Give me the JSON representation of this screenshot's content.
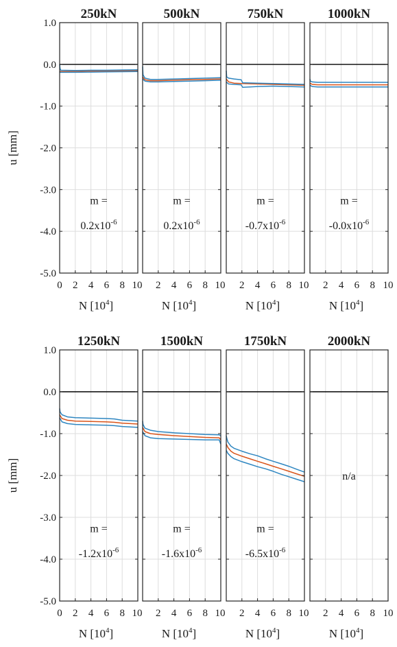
{
  "chart_data": {
    "type": "line",
    "layout": "2x4 small multiples",
    "ylabel": "u [mm]",
    "xlabel": "N [10",
    "xlabel_sup": "4",
    "xlabel_end": "]",
    "ylim": [
      -5.0,
      1.0
    ],
    "yticks": [
      "1.0",
      "0.0",
      "-1.0",
      "-2.0",
      "-3.0",
      "-4.0",
      "-5.0"
    ],
    "xlim": [
      0,
      10
    ],
    "xticks_first": [
      "0",
      "2",
      "4",
      "6",
      "8",
      "10"
    ],
    "xticks_other": [
      "2",
      "4",
      "6",
      "8",
      "10"
    ],
    "grid": true,
    "zero_line": 0,
    "colors": {
      "mean": "#d9541a",
      "envelope": "#2e86c1",
      "zero": "#000000",
      "grid": "#dddddd"
    },
    "m_label": "m =",
    "exp_label": "x10",
    "exp_sup": "-6",
    "panels": [
      {
        "title": "250kN",
        "m_value": "0.2",
        "series": [
          {
            "role": "mean",
            "x": [
              0,
              2,
              4,
              6,
              8,
              10
            ],
            "y": [
              -0.17,
              -0.165,
              -0.16,
              -0.16,
              -0.155,
              -0.15
            ]
          },
          {
            "role": "upper",
            "x": [
              0,
              0.05,
              0.15,
              2,
              4,
              6,
              8,
              10
            ],
            "y": [
              0.0,
              -0.1,
              -0.14,
              -0.145,
              -0.14,
              -0.14,
              -0.135,
              -0.13
            ]
          },
          {
            "role": "lower",
            "x": [
              0,
              2,
              4,
              6,
              8,
              10
            ],
            "y": [
              -0.19,
              -0.19,
              -0.185,
              -0.18,
              -0.175,
              -0.17
            ]
          }
        ]
      },
      {
        "title": "500kN",
        "m_value": "0.2",
        "series": [
          {
            "role": "mean",
            "x": [
              0,
              0.3,
              1,
              2,
              4,
              6,
              8,
              10
            ],
            "y": [
              -0.3,
              -0.37,
              -0.39,
              -0.39,
              -0.38,
              -0.37,
              -0.36,
              -0.35
            ]
          },
          {
            "role": "upper",
            "x": [
              0,
              0.05,
              0.3,
              1,
              2,
              4,
              6,
              8,
              10
            ],
            "y": [
              -0.05,
              -0.25,
              -0.33,
              -0.36,
              -0.36,
              -0.35,
              -0.34,
              -0.33,
              -0.32
            ]
          },
          {
            "role": "lower",
            "x": [
              0,
              0.3,
              1,
              2,
              4,
              6,
              8,
              10
            ],
            "y": [
              -0.35,
              -0.4,
              -0.42,
              -0.42,
              -0.41,
              -0.4,
              -0.39,
              -0.38
            ]
          }
        ]
      },
      {
        "title": "750kN",
        "m_value": "-0.7",
        "series": [
          {
            "role": "mean",
            "x": [
              0,
              0.3,
              1,
              2,
              4,
              6,
              8,
              10
            ],
            "y": [
              -0.35,
              -0.42,
              -0.45,
              -0.46,
              -0.47,
              -0.48,
              -0.49,
              -0.5
            ]
          },
          {
            "role": "upper",
            "x": [
              0,
              0.05,
              0.3,
              1,
              1.9,
              2.1,
              4,
              6,
              8,
              10
            ],
            "y": [
              -0.15,
              -0.3,
              -0.33,
              -0.35,
              -0.37,
              -0.44,
              -0.45,
              -0.46,
              -0.47,
              -0.48
            ]
          },
          {
            "role": "lower",
            "x": [
              0,
              0.3,
              1,
              1.9,
              2.1,
              4,
              6,
              8,
              10
            ],
            "y": [
              -0.42,
              -0.47,
              -0.48,
              -0.49,
              -0.55,
              -0.53,
              -0.52,
              -0.53,
              -0.54
            ]
          }
        ]
      },
      {
        "title": "1000kN",
        "m_value": "-0.0",
        "series": [
          {
            "role": "mean",
            "x": [
              0,
              0.3,
              1,
              2,
              4,
              6,
              8,
              10
            ],
            "y": [
              -0.45,
              -0.48,
              -0.49,
              -0.49,
              -0.49,
              -0.49,
              -0.49,
              -0.49
            ]
          },
          {
            "role": "upper",
            "x": [
              0,
              0.05,
              0.3,
              1,
              2,
              4,
              6,
              8,
              10
            ],
            "y": [
              -0.35,
              -0.4,
              -0.42,
              -0.43,
              -0.43,
              -0.43,
              -0.43,
              -0.43,
              -0.43
            ]
          },
          {
            "role": "lower",
            "x": [
              0,
              0.3,
              1,
              2,
              4,
              6,
              8,
              10
            ],
            "y": [
              -0.5,
              -0.53,
              -0.54,
              -0.54,
              -0.54,
              -0.54,
              -0.54,
              -0.54
            ]
          }
        ]
      },
      {
        "title": "1250kN",
        "m_value": "-1.2",
        "series": [
          {
            "role": "mean",
            "x": [
              0,
              0.3,
              1,
              2,
              4,
              6,
              7,
              8,
              10
            ],
            "y": [
              -0.55,
              -0.64,
              -0.68,
              -0.7,
              -0.71,
              -0.72,
              -0.73,
              -0.75,
              -0.77
            ]
          },
          {
            "role": "upper",
            "x": [
              0,
              0.05,
              0.3,
              1,
              2,
              4,
              6,
              7,
              8,
              10
            ],
            "y": [
              -0.4,
              -0.48,
              -0.55,
              -0.6,
              -0.62,
              -0.63,
              -0.64,
              -0.65,
              -0.68,
              -0.7
            ]
          },
          {
            "role": "lower",
            "x": [
              0,
              0.3,
              1,
              2,
              4,
              6,
              7,
              8,
              10
            ],
            "y": [
              -0.62,
              -0.72,
              -0.76,
              -0.78,
              -0.79,
              -0.8,
              -0.81,
              -0.83,
              -0.85
            ]
          }
        ]
      },
      {
        "title": "1500kN",
        "m_value": "-1.6",
        "series": [
          {
            "role": "mean",
            "x": [
              0,
              0.3,
              1,
              2,
              4,
              6,
              8,
              9.8,
              10
            ],
            "y": [
              -0.85,
              -0.95,
              -1.0,
              -1.02,
              -1.05,
              -1.07,
              -1.09,
              -1.1,
              -1.15
            ]
          },
          {
            "role": "upper",
            "x": [
              0,
              0.05,
              0.3,
              1,
              2,
              4,
              6,
              8,
              9.8,
              10
            ],
            "y": [
              -0.7,
              -0.78,
              -0.87,
              -0.92,
              -0.95,
              -0.98,
              -1.0,
              -1.02,
              -1.03,
              -1.05
            ]
          },
          {
            "role": "lower",
            "x": [
              0,
              0.3,
              1,
              2,
              4,
              6,
              8,
              9.8,
              10
            ],
            "y": [
              -0.95,
              -1.05,
              -1.1,
              -1.12,
              -1.13,
              -1.14,
              -1.15,
              -1.15,
              -1.25
            ]
          }
        ]
      },
      {
        "title": "1750kN",
        "m_value": "-6.5",
        "series": [
          {
            "role": "mean",
            "x": [
              0,
              0.2,
              0.6,
              1,
              2,
              3,
              4,
              5,
              6,
              7,
              8,
              9,
              10
            ],
            "y": [
              -1.25,
              -1.33,
              -1.42,
              -1.47,
              -1.54,
              -1.6,
              -1.66,
              -1.72,
              -1.78,
              -1.84,
              -1.9,
              -1.96,
              -2.02
            ]
          },
          {
            "role": "upper",
            "x": [
              0,
              0.05,
              0.2,
              0.6,
              1,
              2,
              3,
              4,
              5,
              6,
              7,
              8,
              9,
              10
            ],
            "y": [
              -1.05,
              -1.1,
              -1.2,
              -1.3,
              -1.35,
              -1.42,
              -1.48,
              -1.53,
              -1.6,
              -1.66,
              -1.72,
              -1.78,
              -1.85,
              -1.92
            ]
          },
          {
            "role": "lower",
            "x": [
              0,
              0.2,
              0.6,
              1,
              2,
              3,
              4,
              5,
              6,
              7,
              8,
              9,
              10
            ],
            "y": [
              -1.4,
              -1.47,
              -1.55,
              -1.6,
              -1.67,
              -1.73,
              -1.79,
              -1.84,
              -1.9,
              -1.97,
              -2.03,
              -2.09,
              -2.15
            ]
          }
        ]
      },
      {
        "title": "2000kN",
        "m_value": null,
        "note": "n/a",
        "series": []
      }
    ]
  }
}
